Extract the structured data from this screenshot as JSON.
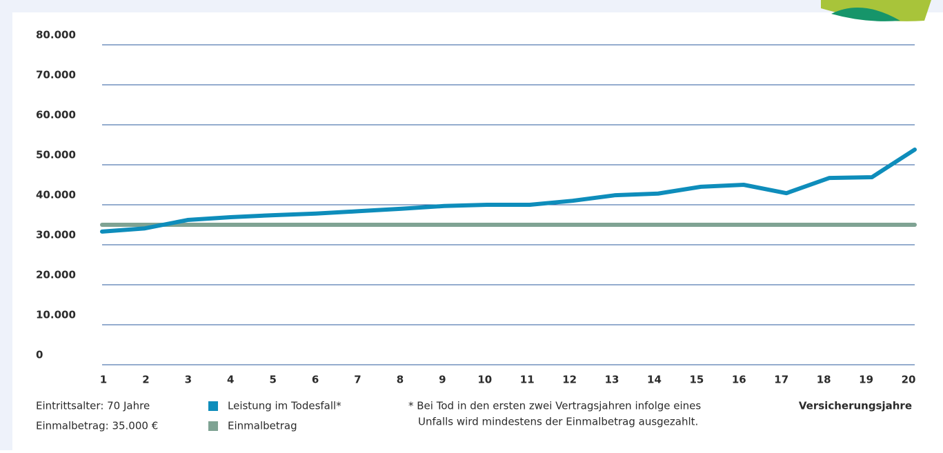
{
  "chart_data": {
    "type": "line",
    "categories": [
      "1",
      "2",
      "3",
      "4",
      "5",
      "6",
      "7",
      "8",
      "9",
      "10",
      "11",
      "12",
      "13",
      "14",
      "15",
      "16",
      "17",
      "18",
      "19",
      "20"
    ],
    "series": [
      {
        "name": "Leistung im Todesfall*",
        "color": "#0e8dbb",
        "values": [
          33300,
          34100,
          36200,
          36900,
          37400,
          37800,
          38400,
          39000,
          39700,
          40000,
          40000,
          41000,
          42400,
          42800,
          44500,
          45000,
          42900,
          46700,
          46900,
          53800
        ]
      },
      {
        "name": "Einmalbetrag",
        "color": "#7fa393",
        "values": [
          35000,
          35000,
          35000,
          35000,
          35000,
          35000,
          35000,
          35000,
          35000,
          35000,
          35000,
          35000,
          35000,
          35000,
          35000,
          35000,
          35000,
          35000,
          35000,
          35000
        ]
      }
    ],
    "ylim": [
      0,
      80000
    ],
    "yticks": [
      0,
      {
        "value": 10000,
        "label": "10.000"
      },
      {
        "value": 20000,
        "label": "20.000"
      },
      {
        "value": 30000,
        "label": "30.000"
      },
      {
        "value": 40000,
        "label": "40.000"
      },
      {
        "value": 50000,
        "label": "50.000"
      },
      {
        "value": 60000,
        "label": "60.000"
      },
      {
        "value": 70000,
        "label": "70.000"
      },
      {
        "value": 80000,
        "label": "80.000"
      }
    ],
    "grid": true,
    "grid_color": "#2a5a9c",
    "x_label": "Versicherungsjahre",
    "notes": [
      "Eintrittsalter: 70 Jahre",
      "Einmalbetrag: 35.000 €"
    ],
    "footnote": [
      "* Bei Tod in den ersten zwei Vertragsjahren infolge eines",
      "Unfalls wird mindestens der Einmalbetrag ausgezahlt."
    ]
  }
}
